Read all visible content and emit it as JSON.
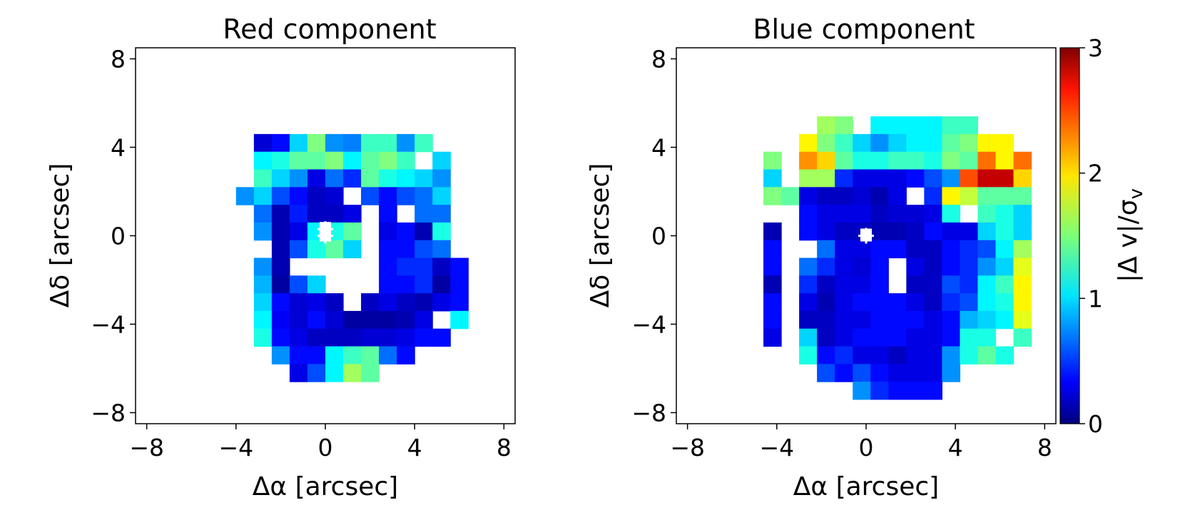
{
  "chart_data": {
    "type": "heatmap",
    "colormap": "jet",
    "colorbar": {
      "label": "|Δ v|/σ",
      "label_subscript": "v",
      "range": [
        0,
        3
      ],
      "ticks": [
        "0",
        "1",
        "2",
        "3"
      ]
    },
    "cell_size_arcsec": 0.8,
    "panels": [
      {
        "title": "Red component",
        "xlabel": "Δα [arcsec]",
        "ylabel": "Δδ [arcsec]",
        "xlim": [
          -8.5,
          8.5
        ],
        "ylim": [
          -8.5,
          8.5
        ],
        "xticks": [
          "−8",
          "−4",
          "0",
          "4",
          "8"
        ],
        "yticks": [
          "8",
          "4",
          "0",
          "−4",
          "−8"
        ],
        "grid": {
          "x0": -4.0,
          "y_top": 4.6,
          "rows": [
            ". 0.25 0.40 1.00 1.50 0.80 0.75 1.30 1.30 0.80 1.30 . .",
            ". 1.10 1.20 1.40 1.40 1.50 1.10 1.40 1.50 1.30 . 1.00 .",
            ". 1.30 1.00 0.80 0.30 0.70 0.50 1.40 1.20 1.10 1.00 0.80 .",
            "0.80 1.00 0.60 0.40 0.20 0.25 . 0.60 0.40 0.60 0.70 1.00 .",
            ". 0.70 0.15 0.45 0.20 0.20 0.30 . 0.40 . 0.70 0.70 .",
            ". 0.80 0.15 0.30 1.10 1.20 1.40 . 0.30 0.40 0.15 1.20 .",
            ". . 0.15 0.60 1.20 1.40 1.00 . 0.40 0.40 0.60 0.70 .",
            ". 0.80 0.15 . . . . . 0.40 0.50 0.50 0.20 0.40",
            ". 0.90 0.10 0.60 1.00 . . . 0.40 0.40 0.50 0.10 0.40",
            ". 1.00 0.40 0.25 0.30 0.20 . 0.20 0.30 0.20 0.15 0.30 0.40",
            ". 1.10 0.35 0.25 0.40 0.25 0.10 0.10 0.10 0.15 0.30 . 1.10",
            ". 1.20 0.40 0.30 0.20 0.20 0.20 0.25 0.25 0.30 0.40 0.40 .",
            ". . 0.80 0.40 0.40 1.10 1.30 1.40 0.70 0.40 . . .",
            ". . . 0.30 0.60 1.10 1.60 1.40 . . . . ."
          ]
        },
        "markers": [
          {
            "type": "cross",
            "x": 0.0,
            "y": 0.3
          },
          {
            "type": "cross",
            "x": 0.0,
            "y": 0.0
          }
        ]
      },
      {
        "title": "Blue component",
        "xlabel": "Δα [arcsec]",
        "ylabel": "Δδ [arcsec]",
        "xlim": [
          -8.5,
          8.5
        ],
        "ylim": [
          -8.5,
          8.5
        ],
        "xticks": [
          "−8",
          "−4",
          "0",
          "4",
          "8"
        ],
        "yticks": [
          "8",
          "4",
          "0",
          "−4",
          "−8"
        ],
        "grid": {
          "x0": -4.6,
          "y_top": 5.4,
          "rows": [
            ". . . 1.60 1.50 . 1.10 1.10 1.10 1.10 1.30 1.30 . . .",
            ". . 1.90 1.50 1.30 1.00 0.80 1.00 1.10 1.10 1.40 1.50 1.90 1.90 .",
            "1.50 . 2.20 2.00 1.40 1.20 1.20 1.30 1.30 1.20 1.50 1.40 2.30 1.90 2.30",
            "1.00 . 1.60 1.60 0.50 0.30 0.30 0.30 0.40 0.60 0.80 2.40 2.80 2.80 2.00",
            "1.50 1.40 0.30 0.20 0.20 0.25 0.15 0.30 . 0.50 1.90 1.70 1.40 1.40 1.40",
            ". . 0.40 0.30 0.30 0.30 0.20 0.25 0.25 0.30 1.20 . 1.30 1.20 1.00",
            "0.15 . 0.40 0.30 0.20 0.20 0.15 0.15 0.20 0.40 0.30 0.30 1.00 1.20 1.00",
            "0.40 . . 0.70 0.30 0.30 0.40 0.40 0.20 0.20 0.40 0.50 0.60 1.10 1.60",
            "0.40 . 0.70 0.50 0.30 0.25 0.40 . 0.30 0.20 0.40 0.50 0.80 1.00 1.80",
            "0.15 . 0.50 0.20 0.30 0.30 0.40 . 0.20 0.20 0.60 0.50 1.10 1.30 1.90",
            "0.40 . 0.30 0.15 0.30 0.40 0.40 0.40 0.30 0.20 0.50 0.60 1.10 1.20 1.90",
            "0.40 . 0.20 0.20 0.30 0.30 0.40 0.40 0.40 0.30 0.40 0.90 1.00 1.10 1.80",
            "0.30 . 1.00 0.20 0.30 0.40 0.40 0.40 0.30 0.30 0.40 1.20 1.20 . 1.30",
            ". . 1.20 0.40 0.50 0.30 0.30 0.20 0.30 0.30 0.80 1.20 1.40 1.20 .",
            ". . . 0.60 0.40 0.60 0.40 0.30 0.30 0.30 0.80 . . . .",
            ". . . . . 0.80 0.50 0.40 0.40 0.40 . . . . ."
          ]
        },
        "markers": [
          {
            "type": "cross",
            "x": 0.0,
            "y": 0.0
          }
        ]
      }
    ]
  }
}
